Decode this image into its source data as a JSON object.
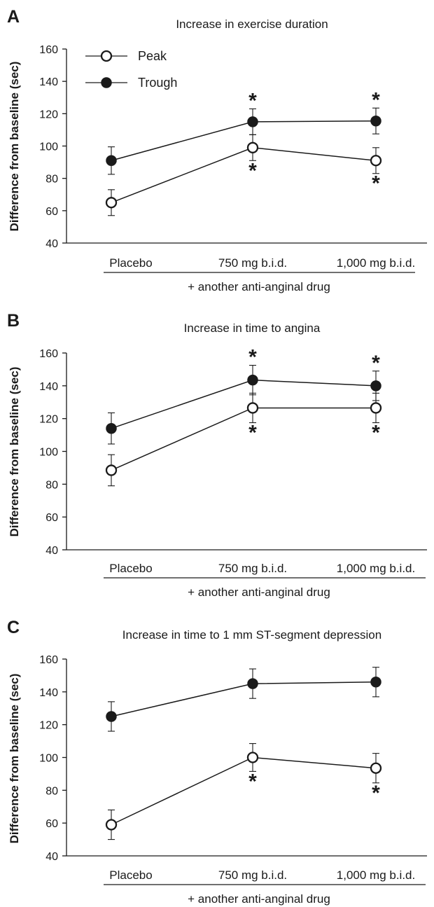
{
  "chart_data": [
    {
      "type": "line",
      "panel": "A",
      "title": "Increase in exercise duration",
      "ylabel": "Difference from baseline (sec)",
      "xlabel": "+ another anti-anginal drug",
      "categories": [
        "Placebo",
        "750 mg b.i.d.",
        "1,000 mg b.i.d."
      ],
      "ylim": [
        40,
        160
      ],
      "yticks": [
        40,
        60,
        80,
        100,
        120,
        140,
        160
      ],
      "legend": "top-left",
      "series": [
        {
          "name": "Peak",
          "marker": "open-circle",
          "values": [
            65,
            99,
            91
          ],
          "errors": [
            8,
            8,
            8
          ],
          "significant": [
            false,
            true,
            true
          ]
        },
        {
          "name": "Trough",
          "marker": "filled-circle",
          "values": [
            91,
            115,
            115.5
          ],
          "errors": [
            8.5,
            8,
            8
          ],
          "significant": [
            false,
            true,
            true
          ]
        }
      ]
    },
    {
      "type": "line",
      "panel": "B",
      "title": "Increase in time to angina",
      "ylabel": "Difference from baseline (sec)",
      "xlabel": "+ another anti-anginal drug",
      "categories": [
        "Placebo",
        "750 mg b.i.d.",
        "1,000 mg b.i.d."
      ],
      "ylim": [
        40,
        160
      ],
      "yticks": [
        40,
        60,
        80,
        100,
        120,
        140,
        160
      ],
      "series": [
        {
          "name": "Peak",
          "marker": "open-circle",
          "values": [
            88.5,
            126.5,
            126.5
          ],
          "errors": [
            9.5,
            9,
            9
          ],
          "significant": [
            false,
            true,
            true
          ]
        },
        {
          "name": "Trough",
          "marker": "filled-circle",
          "values": [
            114,
            143.5,
            140
          ],
          "errors": [
            9.5,
            9,
            9
          ],
          "significant": [
            false,
            true,
            true
          ]
        }
      ]
    },
    {
      "type": "line",
      "panel": "C",
      "title": "Increase in time to 1 mm ST-segment depression",
      "ylabel": "Difference from baseline (sec)",
      "xlabel": "+ another anti-anginal drug",
      "categories": [
        "Placebo",
        "750 mg b.i.d.",
        "1,000 mg b.i.d."
      ],
      "ylim": [
        40,
        160
      ],
      "yticks": [
        40,
        60,
        80,
        100,
        120,
        140,
        160
      ],
      "series": [
        {
          "name": "Peak",
          "marker": "open-circle",
          "values": [
            59,
            100,
            93.5
          ],
          "errors": [
            9,
            8.5,
            9
          ],
          "significant": [
            false,
            true,
            true
          ]
        },
        {
          "name": "Trough",
          "marker": "filled-circle",
          "values": [
            125,
            145,
            146
          ],
          "errors": [
            9,
            9,
            9
          ],
          "significant": [
            false,
            false,
            false
          ]
        }
      ]
    }
  ],
  "significance_marker": "*"
}
